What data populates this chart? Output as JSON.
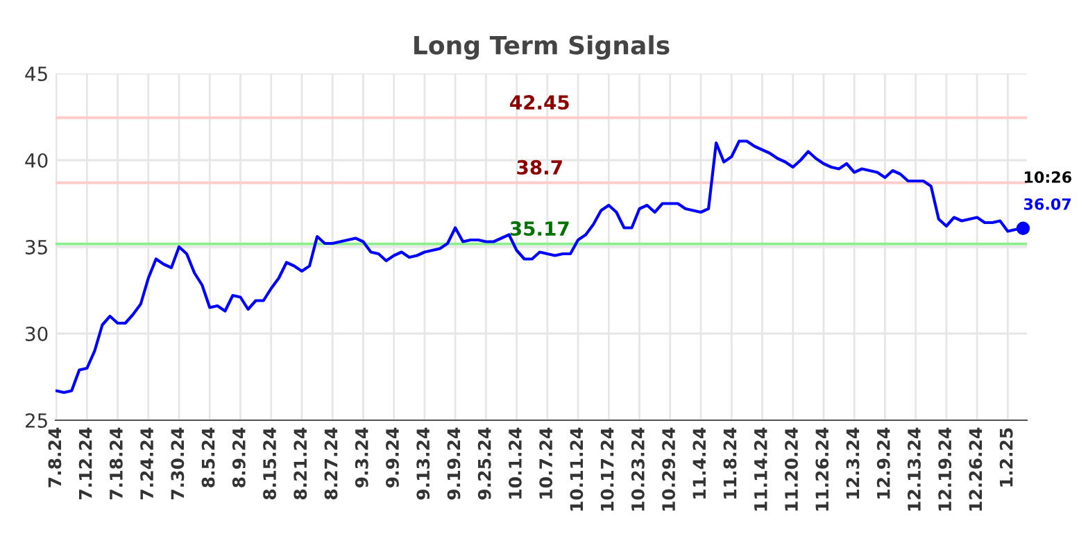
{
  "chart_data": {
    "type": "line",
    "title": "Long Term Signals",
    "categories": [
      "7.8.24",
      null,
      null,
      null,
      "7.12.24",
      null,
      null,
      null,
      "7.18.24",
      null,
      null,
      null,
      "7.24.24",
      null,
      null,
      null,
      "7.30.24",
      null,
      null,
      null,
      "8.5.24",
      null,
      null,
      null,
      "8.9.24",
      null,
      null,
      null,
      "8.15.24",
      null,
      null,
      null,
      "8.21.24",
      null,
      null,
      null,
      "8.27.24",
      null,
      null,
      null,
      "9.3.24",
      null,
      null,
      null,
      "9.9.24",
      null,
      null,
      null,
      "9.13.24",
      null,
      null,
      null,
      "9.19.24",
      null,
      null,
      null,
      "9.25.24",
      null,
      null,
      null,
      "10.1.24",
      null,
      null,
      null,
      "10.7.24",
      null,
      null,
      null,
      "10.11.24",
      null,
      null,
      null,
      "10.17.24",
      null,
      null,
      null,
      "10.23.24",
      null,
      null,
      null,
      "10.29.24",
      null,
      null,
      null,
      "11.4.24",
      null,
      null,
      null,
      "11.8.24",
      null,
      null,
      null,
      "11.14.24",
      null,
      null,
      null,
      "11.20.24",
      null,
      null,
      null,
      "11.26.24",
      null,
      null,
      null,
      "12.3.24",
      null,
      null,
      null,
      "12.9.24",
      null,
      null,
      null,
      "12.13.24",
      null,
      null,
      null,
      "12.19.24",
      null,
      null,
      null,
      "12.26.24",
      null,
      null,
      null,
      "1.2.25",
      null,
      null
    ],
    "series": [
      {
        "color": "#0000ff",
        "values": [
          26.7,
          26.6,
          26.7,
          27.9,
          28.0,
          29.0,
          30.5,
          31.0,
          30.6,
          30.6,
          31.1,
          31.7,
          33.2,
          34.3,
          34.0,
          33.8,
          35.0,
          34.6,
          33.5,
          32.8,
          31.5,
          31.6,
          31.3,
          32.2,
          32.1,
          31.4,
          31.9,
          31.9,
          32.6,
          33.2,
          34.1,
          33.9,
          33.6,
          33.9,
          35.6,
          35.2,
          35.2,
          35.3,
          35.4,
          35.5,
          35.3,
          34.7,
          34.6,
          34.2,
          34.5,
          34.7,
          34.4,
          34.5,
          34.7,
          34.8,
          34.9,
          35.2,
          36.1,
          35.3,
          35.4,
          35.4,
          35.3,
          35.3,
          35.5,
          35.7,
          34.8,
          34.3,
          34.3,
          34.7,
          34.6,
          34.5,
          34.6,
          34.6,
          35.4,
          35.7,
          36.3,
          37.1,
          37.4,
          37.0,
          36.1,
          36.1,
          37.2,
          37.4,
          37.0,
          37.5,
          37.5,
          37.5,
          37.2,
          37.1,
          37.0,
          37.2,
          41.0,
          39.9,
          40.2,
          41.1,
          41.1,
          40.8,
          40.6,
          40.4,
          40.1,
          39.9,
          39.6,
          40.0,
          40.5,
          40.1,
          39.8,
          39.6,
          39.5,
          39.8,
          39.3,
          39.5,
          39.4,
          39.3,
          39.0,
          39.4,
          39.2,
          38.8,
          38.8,
          38.8,
          38.5,
          36.6,
          36.2,
          36.7,
          36.5,
          36.6,
          36.7,
          36.4,
          36.4,
          36.5,
          35.9,
          36.0,
          36.07
        ]
      }
    ],
    "ylim": [
      25,
      45
    ],
    "yticks": [
      25,
      30,
      35,
      40,
      45
    ],
    "grid": true,
    "marker": "none",
    "line_style": "solid",
    "ref_lines": [
      {
        "axis": "y",
        "value": 42.45,
        "label": "42.45",
        "color": "#ffcccc"
      },
      {
        "axis": "y",
        "value": 38.7,
        "label": "38.7",
        "color": "#ffcccc"
      },
      {
        "axis": "y",
        "value": 35.17,
        "label": "35.17",
        "color": "#90ee90"
      }
    ],
    "annotations": [
      "10:26",
      "36.07"
    ]
  }
}
